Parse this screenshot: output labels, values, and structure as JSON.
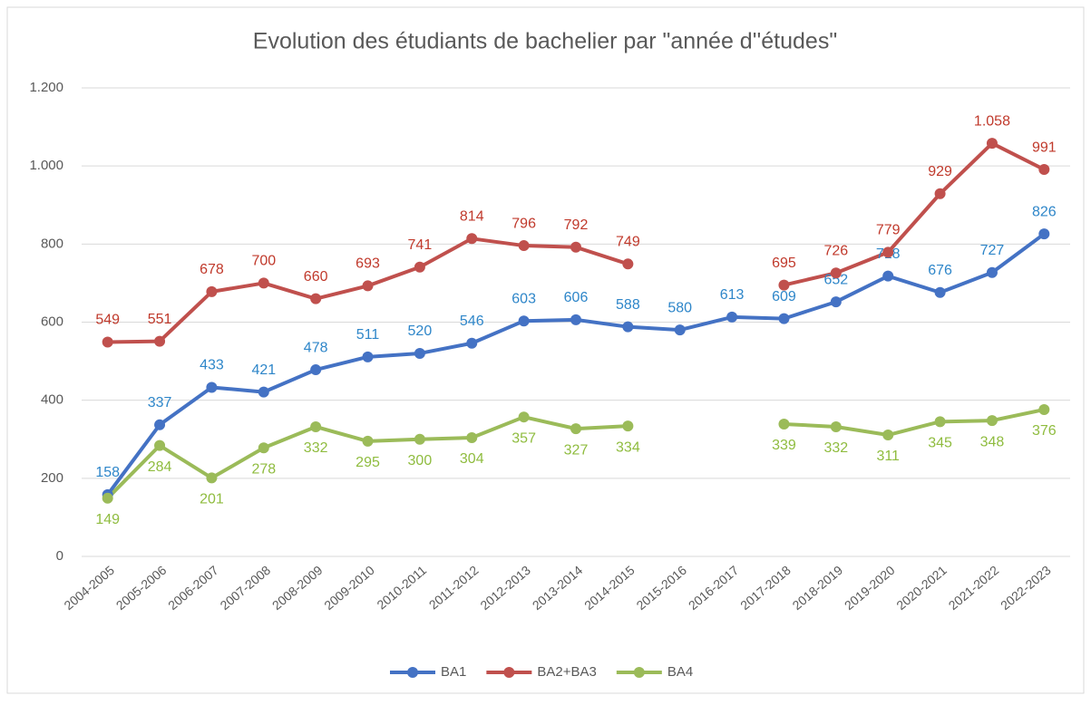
{
  "chart_data": {
    "type": "line",
    "title": "Evolution des étudiants de bachelier par \"année d''études\"",
    "categories": [
      "2004-2005",
      "2005-2006",
      "2006-2007",
      "2007-2008",
      "2008-2009",
      "2009-2010",
      "2010-2011",
      "2011-2012",
      "2012-2013",
      "2013-2014",
      "2014-2015",
      "2015-2016",
      "2016-2017",
      "2017-2018",
      "2018-2019",
      "2019-2020",
      "2020-2021",
      "2021-2022",
      "2022-2023"
    ],
    "series": [
      {
        "name": "BA1",
        "color": "#4472c4",
        "label_color": "#2e86c9",
        "values": [
          158,
          337,
          433,
          421,
          478,
          511,
          520,
          546,
          603,
          606,
          588,
          580,
          613,
          609,
          652,
          718,
          676,
          727,
          826
        ]
      },
      {
        "name": "BA2+BA3",
        "color": "#c0504d",
        "label_color": "#c0392b",
        "values": [
          549,
          551,
          678,
          700,
          660,
          693,
          741,
          814,
          796,
          792,
          749,
          null,
          null,
          695,
          726,
          779,
          929,
          1058,
          991
        ],
        "value_labels": [
          "549",
          "551",
          "678",
          "700",
          "660",
          "693",
          "741",
          "814",
          "796",
          "792",
          "749",
          null,
          null,
          "695",
          "726",
          "779",
          "929",
          "1.058",
          "991"
        ]
      },
      {
        "name": "BA4",
        "color": "#9bbb59",
        "label_color": "#8fbc3f",
        "values": [
          149,
          284,
          201,
          278,
          332,
          295,
          300,
          304,
          357,
          327,
          334,
          null,
          null,
          339,
          332,
          311,
          345,
          348,
          376
        ]
      }
    ],
    "ylim": [
      0,
      1200
    ],
    "yticks": [
      0,
      200,
      400,
      600,
      800,
      {
        "value": 1000,
        "label": "1.000"
      },
      {
        "value": 1200,
        "label": "1.200"
      }
    ],
    "grid": true,
    "legend": "bottom"
  }
}
